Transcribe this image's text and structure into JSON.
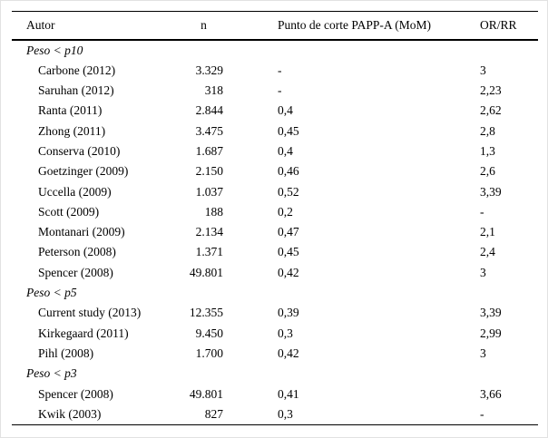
{
  "page": {
    "background": "#ffffff",
    "text_color": "#000000",
    "rule_color": "#000000"
  },
  "table": {
    "columns": [
      "Autor",
      "n",
      "Punto de corte PAPP-A (MoM)",
      "OR/RR"
    ],
    "sections": [
      {
        "label": "Peso < p10",
        "rows": [
          {
            "autor": "Carbone (2012)",
            "n": "3.329",
            "cutoff": "-",
            "or_rr": "3"
          },
          {
            "autor": "Saruhan (2012)",
            "n": "318",
            "cutoff": "-",
            "or_rr": "2,23"
          },
          {
            "autor": "Ranta (2011)",
            "n": "2.844",
            "cutoff": "0,4",
            "or_rr": "2,62"
          },
          {
            "autor": "Zhong (2011)",
            "n": "3.475",
            "cutoff": "0,45",
            "or_rr": "2,8"
          },
          {
            "autor": "Conserva (2010)",
            "n": "1.687",
            "cutoff": "0,4",
            "or_rr": "1,3"
          },
          {
            "autor": "Goetzinger (2009)",
            "n": "2.150",
            "cutoff": "0,46",
            "or_rr": "2,6"
          },
          {
            "autor": "Uccella (2009)",
            "n": "1.037",
            "cutoff": "0,52",
            "or_rr": "3,39"
          },
          {
            "autor": "Scott (2009)",
            "n": "188",
            "cutoff": "0,2",
            "or_rr": "-"
          },
          {
            "autor": "Montanari (2009)",
            "n": "2.134",
            "cutoff": "0,47",
            "or_rr": "2,1"
          },
          {
            "autor": "Peterson (2008)",
            "n": "1.371",
            "cutoff": "0,45",
            "or_rr": "2,4"
          },
          {
            "autor": "Spencer (2008)",
            "n": "49.801",
            "cutoff": "0,42",
            "or_rr": "3"
          }
        ]
      },
      {
        "label": "Peso < p5",
        "rows": [
          {
            "autor": "Current study (2013)",
            "n": "12.355",
            "cutoff": "0,39",
            "or_rr": "3,39"
          },
          {
            "autor": "Kirkegaard (2011)",
            "n": "9.450",
            "cutoff": "0,3",
            "or_rr": "2,99"
          },
          {
            "autor": "Pihl (2008)",
            "n": "1.700",
            "cutoff": "0,42",
            "or_rr": "3"
          }
        ]
      },
      {
        "label": "Peso < p3",
        "rows": [
          {
            "autor": "Spencer (2008)",
            "n": "49.801",
            "cutoff": "0,41",
            "or_rr": "3,66"
          },
          {
            "autor": "Kwik (2003)",
            "n": "827",
            "cutoff": "0,3",
            "or_rr": "-"
          }
        ]
      }
    ]
  }
}
